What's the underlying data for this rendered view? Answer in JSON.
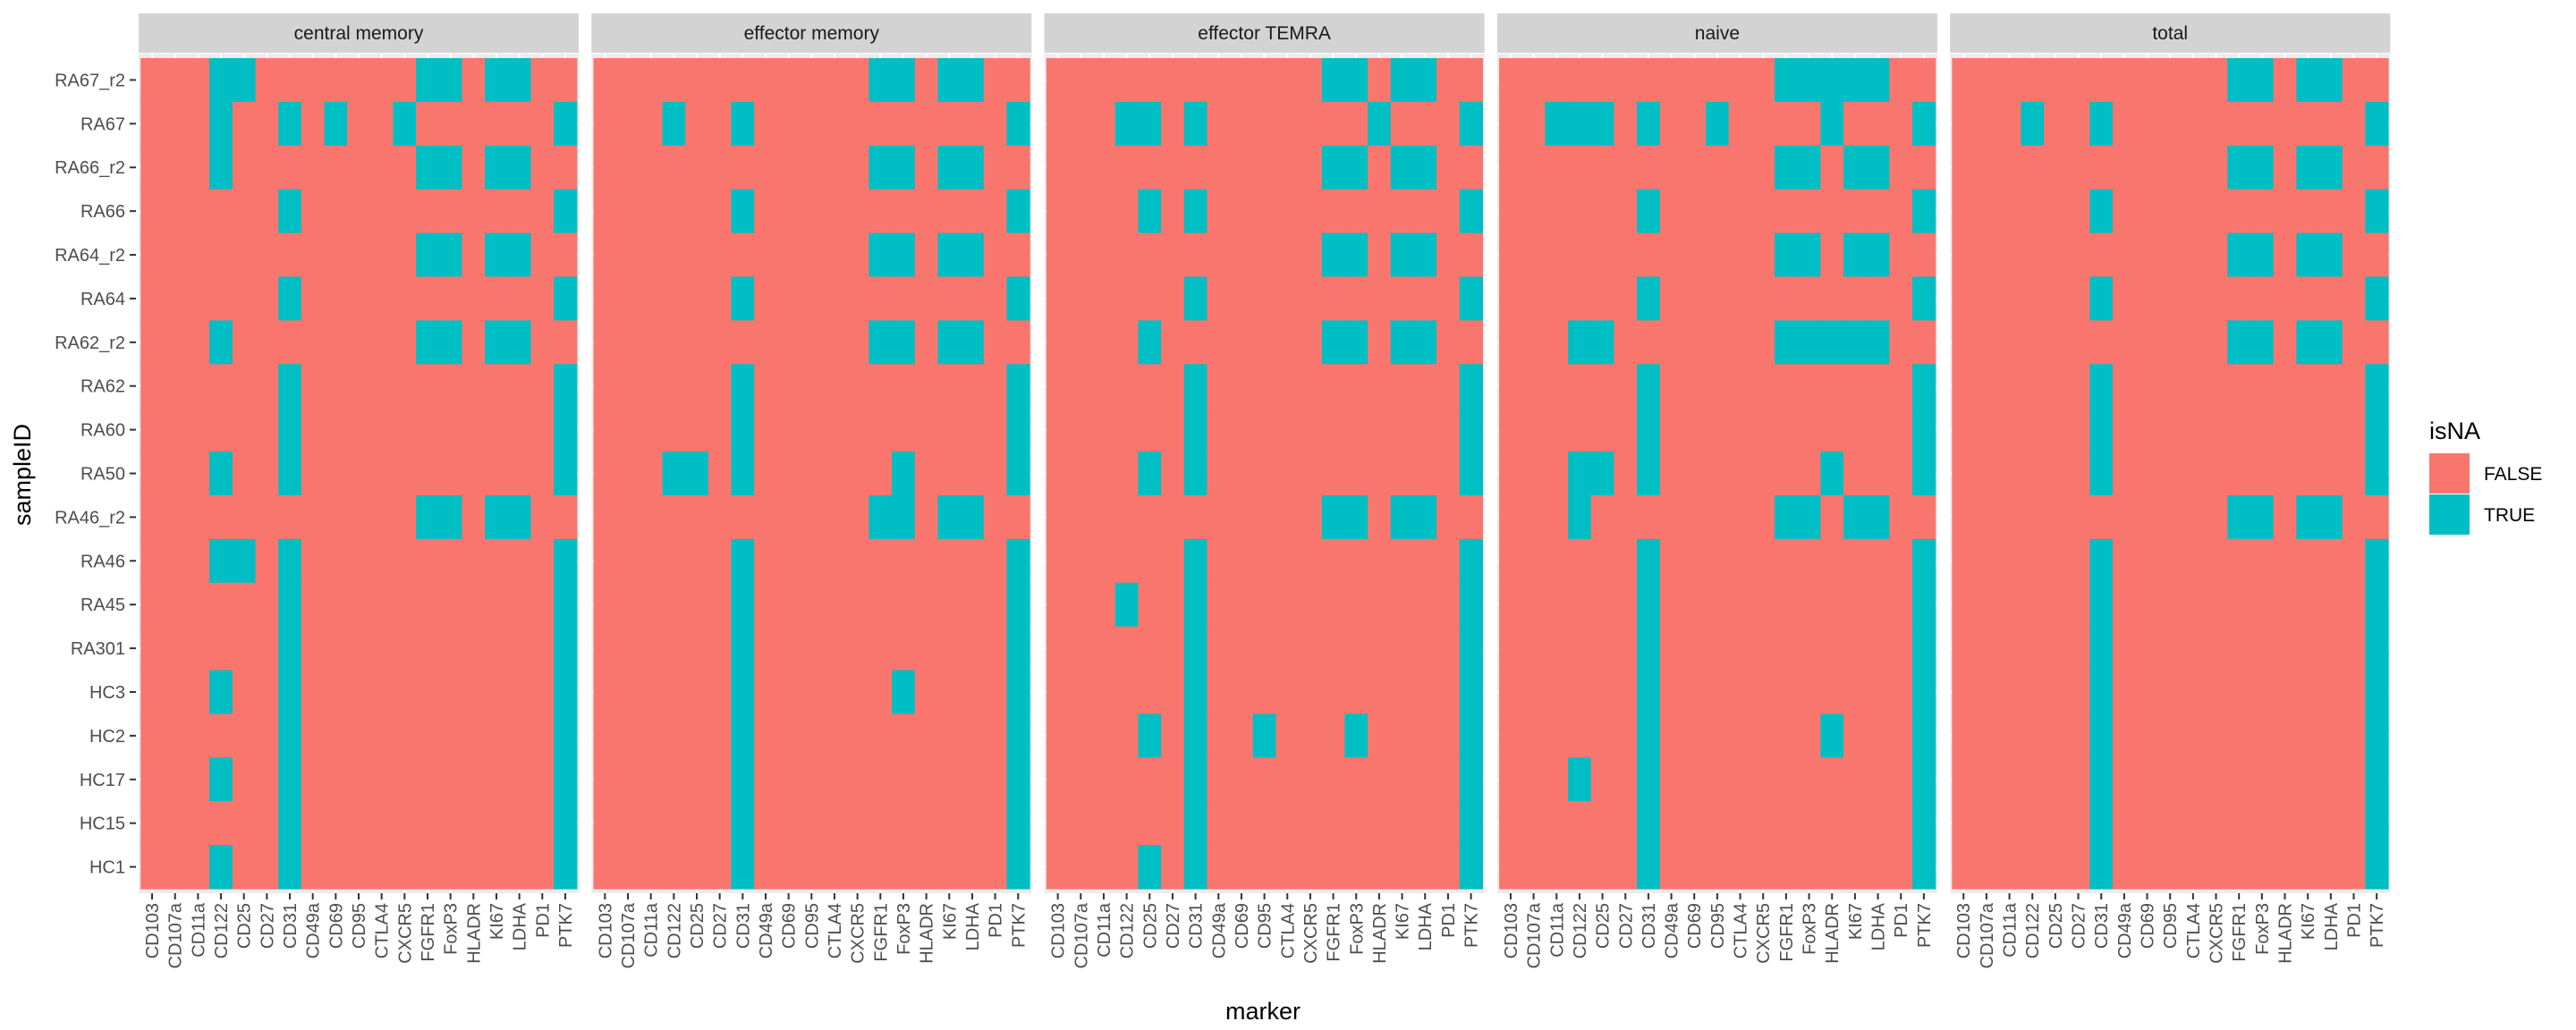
{
  "chart_data": {
    "type": "heatmap",
    "title": "",
    "xlabel": "marker",
    "ylabel": "sampleID",
    "facet_variable": "cell type",
    "panels": [
      "central memory",
      "effector memory",
      "effector TEMRA",
      "naive",
      "total"
    ],
    "markers": [
      "CD103",
      "CD107a",
      "CD11a",
      "CD122",
      "CD25",
      "CD27",
      "CD31",
      "CD49a",
      "CD69",
      "CD95",
      "CTLA4",
      "CXCR5",
      "FGFR1",
      "FoxP3",
      "HLADR",
      "KI67",
      "LDHA",
      "PD1",
      "PTK7"
    ],
    "samples": [
      "RA67_r2",
      "RA67",
      "RA66_r2",
      "RA66",
      "RA64_r2",
      "RA64",
      "RA62_r2",
      "RA62",
      "RA60",
      "RA50",
      "RA46_r2",
      "RA46",
      "RA45",
      "RA301",
      "HC3",
      "HC2",
      "HC17",
      "HC15",
      "HC1"
    ],
    "legend": {
      "title": "isNA",
      "position": "right",
      "entries": [
        {
          "label": "FALSE",
          "color": "#F8766D"
        },
        {
          "label": "TRUE",
          "color": "#00BFC4"
        }
      ]
    },
    "default_value": "FALSE",
    "true_cells": {
      "central memory": {
        "RA67_r2": [
          "CD122",
          "CD25",
          "FGFR1",
          "FoxP3",
          "KI67",
          "LDHA"
        ],
        "RA67": [
          "CD122",
          "CD31",
          "CD69",
          "CXCR5",
          "PTK7"
        ],
        "RA66_r2": [
          "CD122",
          "FGFR1",
          "FoxP3",
          "KI67",
          "LDHA"
        ],
        "RA66": [
          "CD31",
          "PTK7"
        ],
        "RA64_r2": [
          "FGFR1",
          "FoxP3",
          "KI67",
          "LDHA"
        ],
        "RA64": [
          "CD31",
          "PTK7"
        ],
        "RA62_r2": [
          "CD122",
          "FGFR1",
          "FoxP3",
          "KI67",
          "LDHA"
        ],
        "RA62": [
          "CD31",
          "PTK7"
        ],
        "RA60": [
          "CD31",
          "PTK7"
        ],
        "RA50": [
          "CD122",
          "CD31",
          "PTK7"
        ],
        "RA46_r2": [
          "FGFR1",
          "FoxP3",
          "KI67",
          "LDHA"
        ],
        "RA46": [
          "CD122",
          "CD25",
          "CD31",
          "PTK7"
        ],
        "RA45": [
          "CD31",
          "PTK7"
        ],
        "RA301": [
          "CD31",
          "PTK7"
        ],
        "HC3": [
          "CD122",
          "CD31",
          "PTK7"
        ],
        "HC2": [
          "CD31",
          "PTK7"
        ],
        "HC17": [
          "CD122",
          "CD31",
          "PTK7"
        ],
        "HC15": [
          "CD31",
          "PTK7"
        ],
        "HC1": [
          "CD122",
          "CD31",
          "PTK7"
        ]
      },
      "effector memory": {
        "RA67_r2": [
          "FGFR1",
          "FoxP3",
          "KI67",
          "LDHA"
        ],
        "RA67": [
          "CD122",
          "CD31",
          "PTK7"
        ],
        "RA66_r2": [
          "FGFR1",
          "FoxP3",
          "KI67",
          "LDHA"
        ],
        "RA66": [
          "CD31",
          "PTK7"
        ],
        "RA64_r2": [
          "FGFR1",
          "FoxP3",
          "KI67",
          "LDHA"
        ],
        "RA64": [
          "CD31",
          "PTK7"
        ],
        "RA62_r2": [
          "FGFR1",
          "FoxP3",
          "KI67",
          "LDHA"
        ],
        "RA62": [
          "CD31",
          "PTK7"
        ],
        "RA60": [
          "CD31",
          "PTK7"
        ],
        "RA50": [
          "CD122",
          "CD25",
          "CD31",
          "FoxP3",
          "PTK7"
        ],
        "RA46_r2": [
          "FGFR1",
          "FoxP3",
          "KI67",
          "LDHA"
        ],
        "RA46": [
          "CD31",
          "PTK7"
        ],
        "RA45": [
          "CD31",
          "PTK7"
        ],
        "RA301": [
          "CD31",
          "PTK7"
        ],
        "HC3": [
          "CD31",
          "FoxP3",
          "PTK7"
        ],
        "HC2": [
          "CD31",
          "PTK7"
        ],
        "HC17": [
          "CD31",
          "PTK7"
        ],
        "HC15": [
          "CD31",
          "PTK7"
        ],
        "HC1": [
          "CD31",
          "PTK7"
        ]
      },
      "effector TEMRA": {
        "RA67_r2": [
          "FGFR1",
          "FoxP3",
          "KI67",
          "LDHA"
        ],
        "RA67": [
          "CD122",
          "CD25",
          "CD31",
          "HLADR",
          "PTK7"
        ],
        "RA66_r2": [
          "FGFR1",
          "FoxP3",
          "KI67",
          "LDHA"
        ],
        "RA66": [
          "CD25",
          "CD31",
          "PTK7"
        ],
        "RA64_r2": [
          "FGFR1",
          "FoxP3",
          "KI67",
          "LDHA"
        ],
        "RA64": [
          "CD31",
          "PTK7"
        ],
        "RA62_r2": [
          "CD25",
          "FGFR1",
          "FoxP3",
          "KI67",
          "LDHA"
        ],
        "RA62": [
          "CD31",
          "PTK7"
        ],
        "RA60": [
          "CD31",
          "PTK7"
        ],
        "RA50": [
          "CD25",
          "CD31",
          "PTK7"
        ],
        "RA46_r2": [
          "FGFR1",
          "FoxP3",
          "KI67",
          "LDHA"
        ],
        "RA46": [
          "CD31",
          "PTK7"
        ],
        "RA45": [
          "CD122",
          "CD31",
          "PTK7"
        ],
        "RA301": [
          "CD31",
          "PTK7"
        ],
        "HC3": [
          "CD31",
          "PTK7"
        ],
        "HC2": [
          "CD25",
          "CD31",
          "CD95",
          "FoxP3",
          "PTK7"
        ],
        "HC17": [
          "CD31",
          "PTK7"
        ],
        "HC15": [
          "CD31",
          "PTK7"
        ],
        "HC1": [
          "CD25",
          "CD31",
          "PTK7"
        ]
      },
      "naive": {
        "RA67_r2": [
          "FGFR1",
          "FoxP3",
          "HLADR",
          "KI67",
          "LDHA"
        ],
        "RA67": [
          "CD11a",
          "CD122",
          "CD25",
          "CD31",
          "CD95",
          "HLADR",
          "PTK7"
        ],
        "RA66_r2": [
          "FGFR1",
          "FoxP3",
          "KI67",
          "LDHA"
        ],
        "RA66": [
          "CD31",
          "PTK7"
        ],
        "RA64_r2": [
          "FGFR1",
          "FoxP3",
          "KI67",
          "LDHA"
        ],
        "RA64": [
          "CD31",
          "PTK7"
        ],
        "RA62_r2": [
          "CD122",
          "CD25",
          "FGFR1",
          "FoxP3",
          "HLADR",
          "KI67",
          "LDHA"
        ],
        "RA62": [
          "CD31",
          "PTK7"
        ],
        "RA60": [
          "CD31",
          "PTK7"
        ],
        "RA50": [
          "CD122",
          "CD25",
          "CD31",
          "HLADR",
          "PTK7"
        ],
        "RA46_r2": [
          "CD122",
          "FGFR1",
          "FoxP3",
          "KI67",
          "LDHA"
        ],
        "RA46": [
          "CD31",
          "PTK7"
        ],
        "RA45": [
          "CD31",
          "PTK7"
        ],
        "RA301": [
          "CD31",
          "PTK7"
        ],
        "HC3": [
          "CD31",
          "PTK7"
        ],
        "HC2": [
          "CD31",
          "HLADR",
          "PTK7"
        ],
        "HC17": [
          "CD122",
          "CD31",
          "PTK7"
        ],
        "HC15": [
          "CD31",
          "PTK7"
        ],
        "HC1": [
          "CD31",
          "PTK7"
        ]
      },
      "total": {
        "RA67_r2": [
          "FGFR1",
          "FoxP3",
          "KI67",
          "LDHA"
        ],
        "RA67": [
          "CD122",
          "CD31",
          "PTK7"
        ],
        "RA66_r2": [
          "FGFR1",
          "FoxP3",
          "KI67",
          "LDHA"
        ],
        "RA66": [
          "CD31",
          "PTK7"
        ],
        "RA64_r2": [
          "FGFR1",
          "FoxP3",
          "KI67",
          "LDHA"
        ],
        "RA64": [
          "CD31",
          "PTK7"
        ],
        "RA62_r2": [
          "FGFR1",
          "FoxP3",
          "KI67",
          "LDHA"
        ],
        "RA62": [
          "CD31",
          "PTK7"
        ],
        "RA60": [
          "CD31",
          "PTK7"
        ],
        "RA50": [
          "CD31",
          "PTK7"
        ],
        "RA46_r2": [
          "FGFR1",
          "FoxP3",
          "KI67",
          "LDHA"
        ],
        "RA46": [
          "CD31",
          "PTK7"
        ],
        "RA45": [
          "CD31",
          "PTK7"
        ],
        "RA301": [
          "CD31",
          "PTK7"
        ],
        "HC3": [
          "CD31",
          "PTK7"
        ],
        "HC2": [
          "CD31",
          "PTK7"
        ],
        "HC17": [
          "CD31",
          "PTK7"
        ],
        "HC15": [
          "CD31",
          "PTK7"
        ],
        "HC1": [
          "CD31",
          "PTK7"
        ]
      }
    }
  }
}
